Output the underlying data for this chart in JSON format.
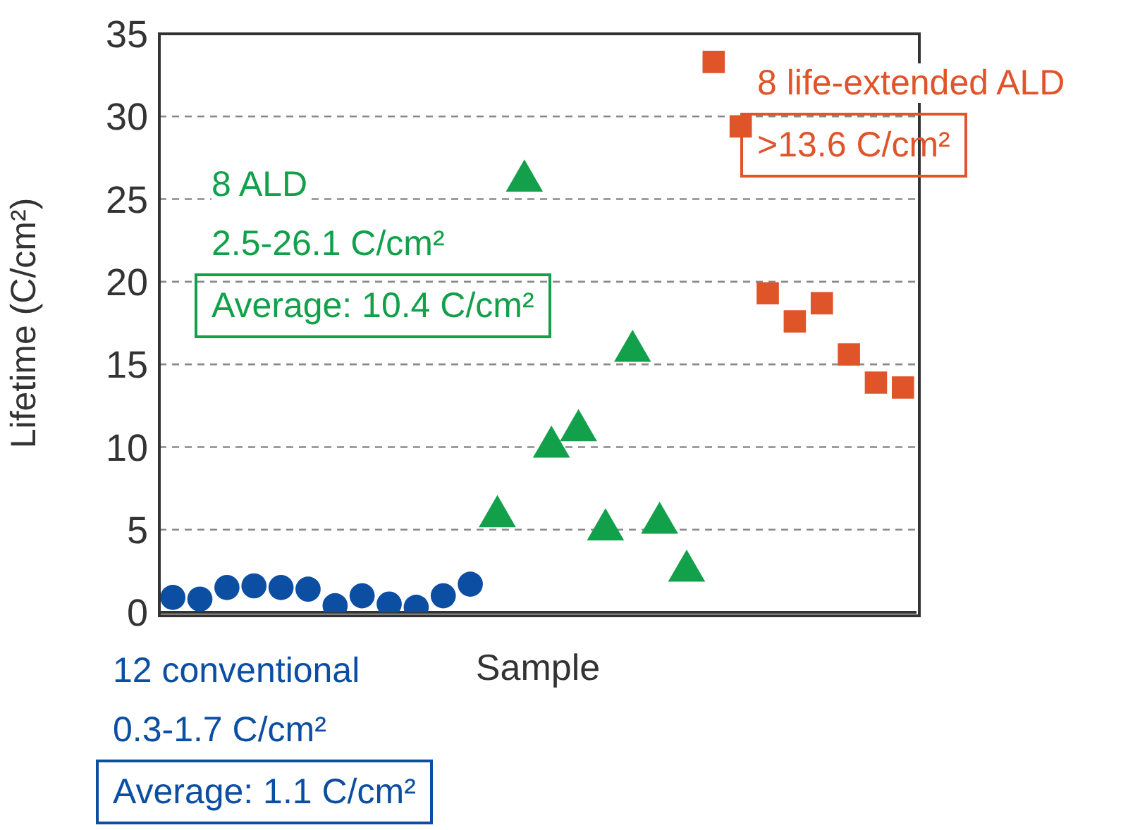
{
  "chart_data": {
    "type": "scatter",
    "xlabel": "Sample",
    "ylabel": "Lifetime (C/cm²)",
    "categories": [
      null,
      null,
      null,
      null,
      null,
      null,
      null,
      null,
      null,
      null,
      null,
      null,
      null,
      null,
      null,
      null,
      null,
      null,
      null,
      null,
      null,
      null,
      null,
      null,
      null,
      null,
      null,
      null
    ],
    "series": [
      {
        "name": "12 conventional",
        "color": "#0b4ea2",
        "marker": "circle",
        "values": [
          0.9,
          0.8,
          1.5,
          1.6,
          1.5,
          1.4,
          0.4,
          1.0,
          0.5,
          0.3,
          1.0,
          1.7,
          null,
          null,
          null,
          null,
          null,
          null,
          null,
          null,
          null,
          null,
          null,
          null,
          null,
          null,
          null,
          null
        ]
      },
      {
        "name": "8 ALD",
        "color": "#12a04a",
        "marker": "triangle",
        "values": [
          null,
          null,
          null,
          null,
          null,
          null,
          null,
          null,
          null,
          null,
          null,
          null,
          5.8,
          26.1,
          10.0,
          11.0,
          5.0,
          15.8,
          5.4,
          2.5,
          null,
          null,
          null,
          null,
          null,
          null,
          null,
          null
        ]
      },
      {
        "name": "8 life-extended ALD",
        "color": "#e0542a",
        "marker": "square",
        "values": [
          null,
          null,
          null,
          null,
          null,
          null,
          null,
          null,
          null,
          null,
          null,
          null,
          null,
          null,
          null,
          null,
          null,
          null,
          null,
          null,
          33.3,
          29.4,
          19.3,
          17.6,
          18.7,
          null,
          null,
          null
        ]
      },
      {
        "color": "#e0542a",
        "marker": "square",
        "values": [
          null,
          null,
          null,
          null,
          null,
          null,
          null,
          null,
          null,
          null,
          null,
          null,
          null,
          null,
          null,
          null,
          null,
          null,
          null,
          null,
          null,
          null,
          null,
          null,
          null,
          15.6,
          13.9,
          13.6
        ]
      }
    ],
    "annotations": [
      "0.3-1.7 C/cm²",
      "Average: 1.1 C/cm²",
      "2.5-26.1 C/cm²",
      "Average: 10.4 C/cm²",
      ">13.6 C/cm²"
    ],
    "ylim": [
      0,
      35
    ],
    "yticks": [
      0,
      5,
      10,
      15,
      20,
      25,
      30,
      35
    ],
    "grid": "y",
    "legend": "bottom right"
  }
}
